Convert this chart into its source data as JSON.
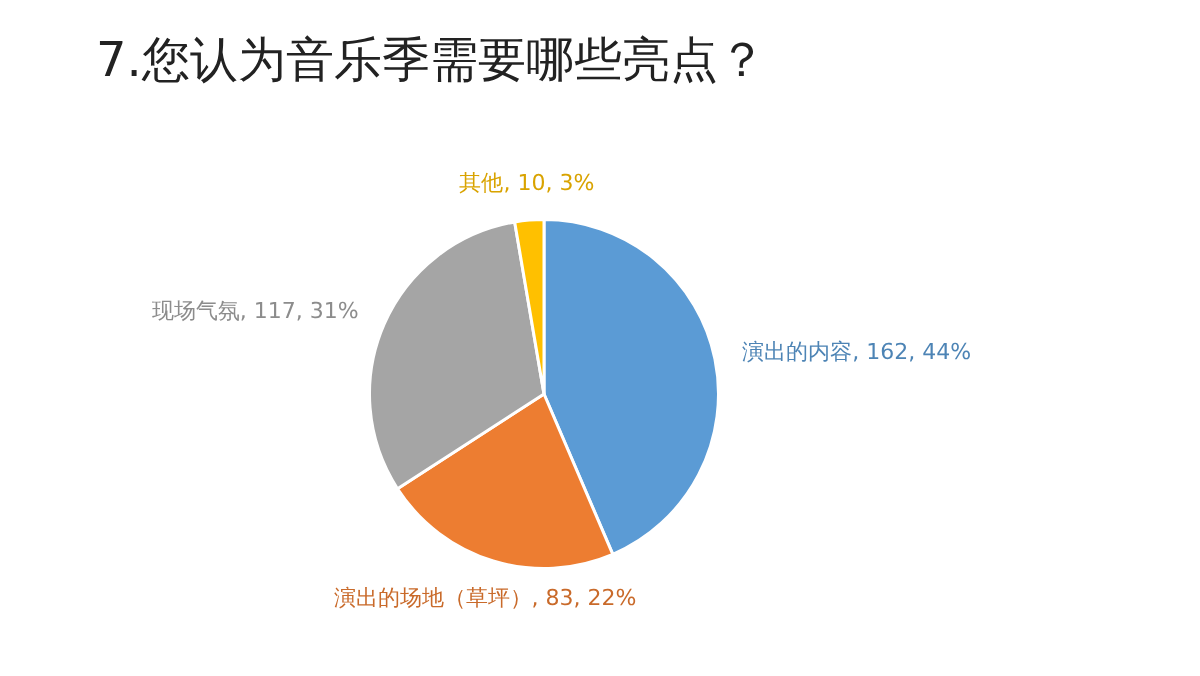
{
  "chart_data": {
    "type": "pie",
    "title": "7.您认为音乐季需要哪些亮点？",
    "categories": [
      "演出的内容",
      "演出的场地（草坪）",
      "现场气氛",
      "其他"
    ],
    "values": [
      162,
      83,
      117,
      10
    ],
    "colors": [
      "#5b9bd5",
      "#ed7d31",
      "#a5a5a5",
      "#ffc000"
    ],
    "value_labels": [
      "162, 44%",
      "83, 22%",
      "117, 31%",
      "10, 3%"
    ],
    "legend": false
  }
}
